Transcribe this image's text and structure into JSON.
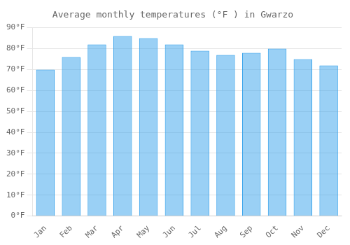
{
  "chart_data": {
    "type": "bar",
    "title": "Average monthly temperatures (°F ) in Gwarzo",
    "categories": [
      "Jan",
      "Feb",
      "Mar",
      "Apr",
      "May",
      "Jun",
      "Jul",
      "Aug",
      "Sep",
      "Oct",
      "Nov",
      "Dec"
    ],
    "values": [
      70,
      76,
      82,
      86,
      85,
      82,
      79,
      77,
      78,
      80,
      75,
      72
    ],
    "ylim": [
      0,
      90
    ],
    "yticks": [
      {
        "value": 0,
        "label": "0°F"
      },
      {
        "value": 10,
        "label": "10°F"
      },
      {
        "value": 20,
        "label": "20°F"
      },
      {
        "value": 30,
        "label": "30°F"
      },
      {
        "value": 40,
        "label": "40°F"
      },
      {
        "value": 50,
        "label": "50°F"
      },
      {
        "value": 60,
        "label": "60°F"
      },
      {
        "value": 70,
        "label": "70°F"
      },
      {
        "value": 80,
        "label": "80°F"
      },
      {
        "value": 90,
        "label": "90°F"
      }
    ],
    "grid": true
  }
}
